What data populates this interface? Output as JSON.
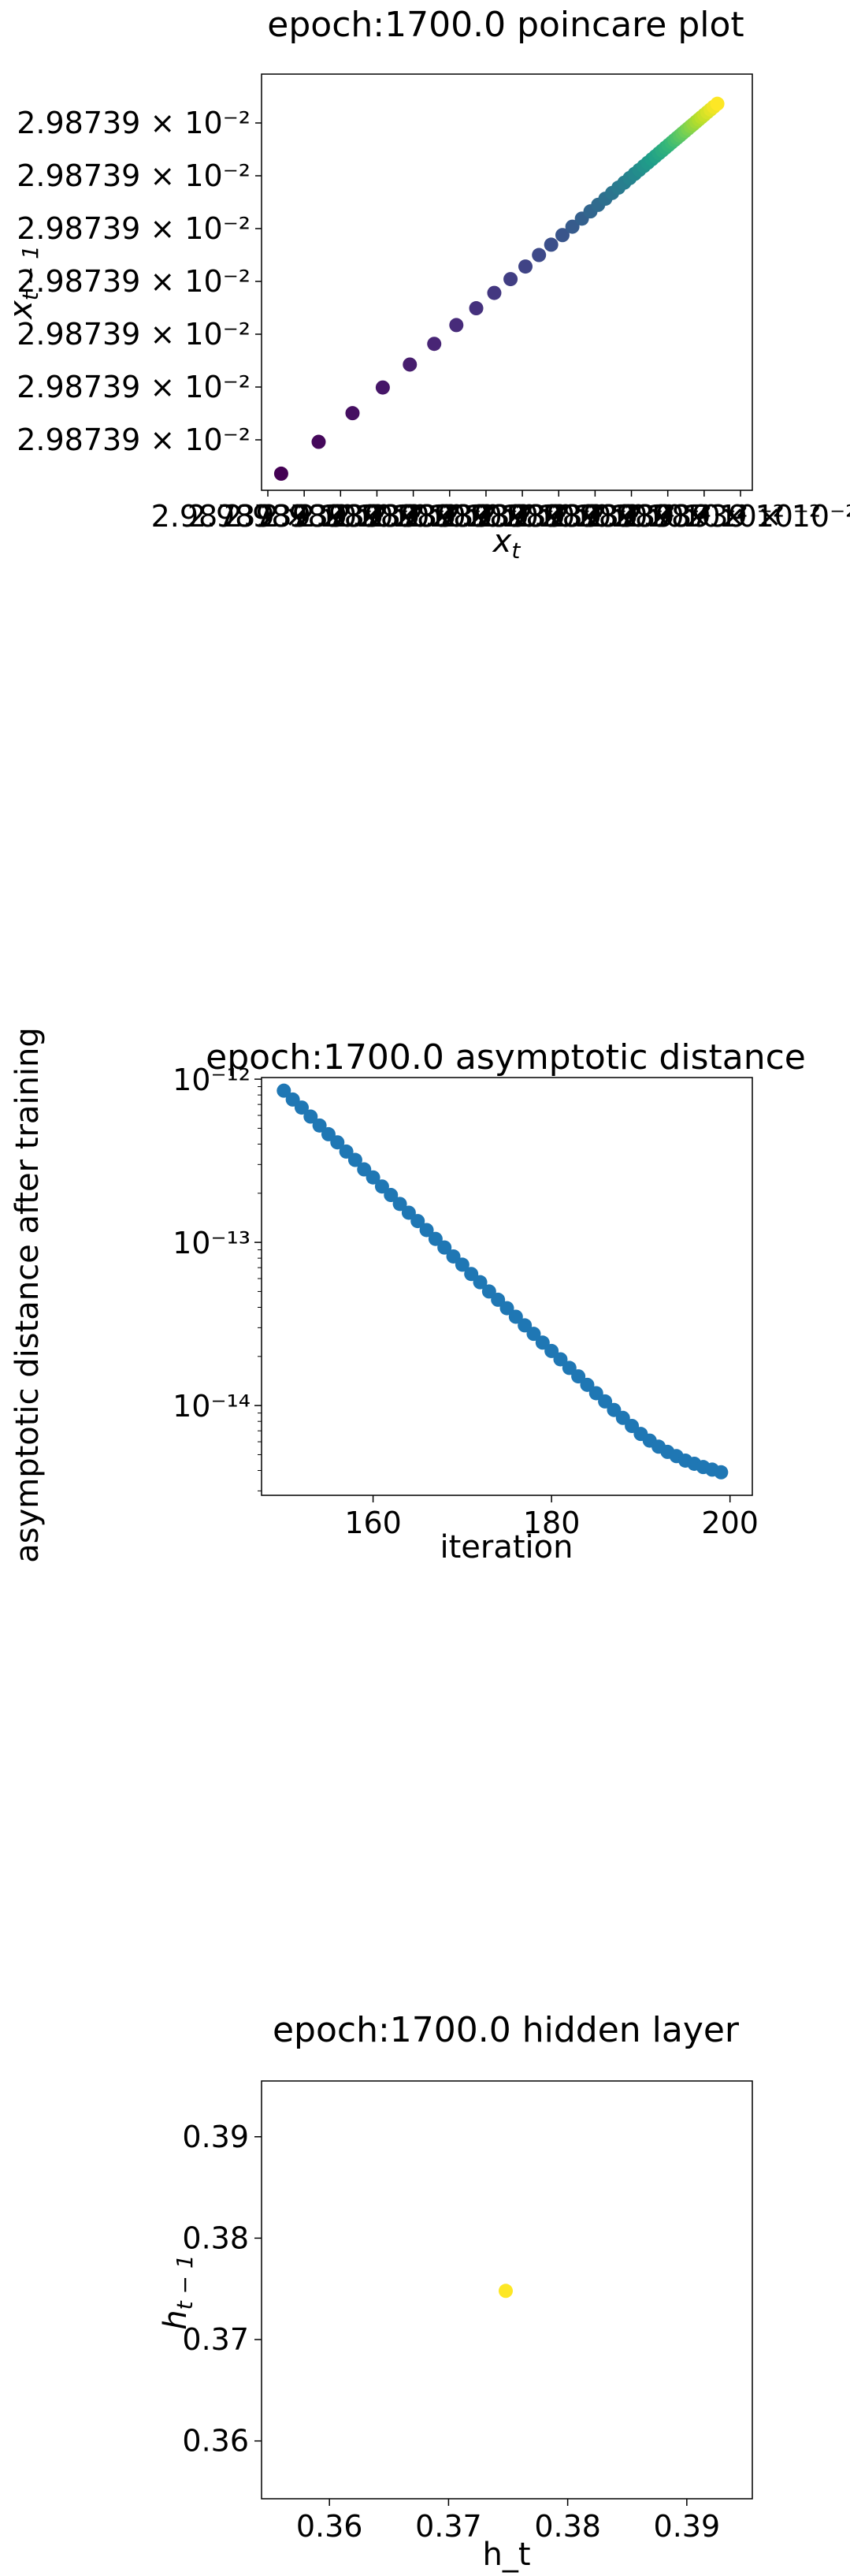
{
  "chart_data": [
    {
      "type": "scatter",
      "title": "epoch:1700.0 poincare plot",
      "xlabel": "x_t",
      "ylabel": "x_{t-1}",
      "x_tick_labels": [
        "2.98739 × 10⁻²",
        "2.98739 × 10⁻²",
        "2.98739 × 10⁻²",
        "2.98739 × 10⁻²",
        "2.98739 × 10⁻²",
        "2.98739 × 10⁻²",
        "2.98739 × 10⁻²",
        "2.98739 × 10⁻²",
        "2.98739 × 10⁻²",
        "2.98739 × 10⁻²",
        "2.98739 × 10⁻²",
        "2.98739 × 10⁻²",
        "2.98739 × 10⁻²",
        "2.98739 × 10⁻²"
      ],
      "y_tick_labels": [
        "2.98739 × 10⁻²",
        "2.98739 × 10⁻²",
        "2.98739 × 10⁻²",
        "2.98739 × 10⁻²",
        "2.98739 × 10⁻²",
        "2.98739 × 10⁻²",
        "2.98739 × 10⁻²"
      ],
      "value_approx": 0.0298739,
      "note_points": "points lie on diagonal; values identical to displayed precision",
      "points": [
        {
          "x": 0.0,
          "y": 0.0
        },
        {
          "x": 0.083,
          "y": 0.083
        },
        {
          "x": 0.158,
          "y": 0.158
        },
        {
          "x": 0.225,
          "y": 0.225
        },
        {
          "x": 0.285,
          "y": 0.285
        },
        {
          "x": 0.339,
          "y": 0.339
        },
        {
          "x": 0.388,
          "y": 0.388
        },
        {
          "x": 0.432,
          "y": 0.432
        },
        {
          "x": 0.472,
          "y": 0.472
        },
        {
          "x": 0.508,
          "y": 0.508
        },
        {
          "x": 0.541,
          "y": 0.541
        },
        {
          "x": 0.571,
          "y": 0.571
        },
        {
          "x": 0.598,
          "y": 0.598
        },
        {
          "x": 0.623,
          "y": 0.623
        },
        {
          "x": 0.645,
          "y": 0.645
        },
        {
          "x": 0.666,
          "y": 0.666
        },
        {
          "x": 0.685,
          "y": 0.685
        },
        {
          "x": 0.702,
          "y": 0.702
        },
        {
          "x": 0.718,
          "y": 0.718
        },
        {
          "x": 0.733,
          "y": 0.733
        },
        {
          "x": 0.747,
          "y": 0.747
        },
        {
          "x": 0.76,
          "y": 0.76
        },
        {
          "x": 0.772,
          "y": 0.772
        },
        {
          "x": 0.783,
          "y": 0.783
        },
        {
          "x": 0.793,
          "y": 0.793
        },
        {
          "x": 0.803,
          "y": 0.803
        },
        {
          "x": 0.812,
          "y": 0.812
        },
        {
          "x": 0.821,
          "y": 0.821
        },
        {
          "x": 0.829,
          "y": 0.829
        },
        {
          "x": 0.837,
          "y": 0.837
        },
        {
          "x": 0.844,
          "y": 0.844
        },
        {
          "x": 0.851,
          "y": 0.851
        },
        {
          "x": 0.858,
          "y": 0.858
        },
        {
          "x": 0.865,
          "y": 0.865
        },
        {
          "x": 0.871,
          "y": 0.871
        },
        {
          "x": 0.877,
          "y": 0.877
        },
        {
          "x": 0.883,
          "y": 0.883
        },
        {
          "x": 0.889,
          "y": 0.889
        },
        {
          "x": 0.895,
          "y": 0.895
        },
        {
          "x": 0.901,
          "y": 0.901
        },
        {
          "x": 0.907,
          "y": 0.907
        },
        {
          "x": 0.913,
          "y": 0.913
        },
        {
          "x": 0.919,
          "y": 0.919
        },
        {
          "x": 0.925,
          "y": 0.925
        },
        {
          "x": 0.931,
          "y": 0.931
        },
        {
          "x": 0.937,
          "y": 0.937
        },
        {
          "x": 0.944,
          "y": 0.944
        },
        {
          "x": 0.951,
          "y": 0.951
        },
        {
          "x": 0.958,
          "y": 0.958
        },
        {
          "x": 0.966,
          "y": 0.966
        }
      ],
      "colormap": "viridis",
      "grid": false
    },
    {
      "type": "scatter",
      "title": "epoch:1700.0 asymptotic distance",
      "xlabel": "iteration",
      "ylabel": "asymptotic distance after training",
      "x_ticks": [
        160,
        180,
        200
      ],
      "x_tick_labels": [
        "160",
        "180",
        "200"
      ],
      "xlim": [
        147.5,
        202.5
      ],
      "yscale": "log",
      "y_tick_labels": [
        "10⁻¹²",
        "10⁻¹³",
        "10⁻¹⁴"
      ],
      "y_tick_exponents": [
        -12,
        -13,
        -14
      ],
      "ylim_log10": [
        -14.55,
        -11.99
      ],
      "x": [
        150,
        151,
        152,
        153,
        154,
        155,
        156,
        157,
        158,
        159,
        160,
        161,
        162,
        163,
        164,
        165,
        166,
        167,
        168,
        169,
        170,
        171,
        172,
        173,
        174,
        175,
        176,
        177,
        178,
        179,
        180,
        181,
        182,
        183,
        184,
        185,
        186,
        187,
        188,
        189,
        190,
        191,
        192,
        193,
        194,
        195,
        196,
        197,
        198,
        199
      ],
      "y": [
        8.5e-13,
        7.5e-13,
        6.7e-13,
        5.9e-13,
        5.2e-13,
        4.6e-13,
        4.1e-13,
        3.6e-13,
        3.2e-13,
        2.8e-13,
        2.5e-13,
        2.2e-13,
        1.95e-13,
        1.72e-13,
        1.52e-13,
        1.35e-13,
        1.19e-13,
        1.05e-13,
        9.3e-14,
        8.2e-14,
        7.3e-14,
        6.4e-14,
        5.7e-14,
        5e-14,
        4.45e-14,
        3.95e-14,
        3.5e-14,
        3.1e-14,
        2.75e-14,
        2.43e-14,
        2.16e-14,
        1.92e-14,
        1.7e-14,
        1.51e-14,
        1.34e-14,
        1.19e-14,
        1.06e-14,
        9.4e-15,
        8.4e-15,
        7.5e-15,
        6.7e-15,
        6.1e-15,
        5.6e-15,
        5.2e-15,
        4.9e-15,
        4.6e-15,
        4.4e-15,
        4.2e-15,
        4.05e-15,
        3.9e-15
      ],
      "color": "#1f77b4",
      "grid": false
    },
    {
      "type": "scatter",
      "title": "epoch:1700.0 hidden layer",
      "xlabel": "h_t",
      "ylabel": "h_{t-1}",
      "x_ticks": [
        0.36,
        0.37,
        0.38,
        0.39
      ],
      "x_tick_labels": [
        "0.36",
        "0.37",
        "0.38",
        "0.39"
      ],
      "y_ticks": [
        0.36,
        0.37,
        0.38,
        0.39
      ],
      "y_tick_labels": [
        "0.36",
        "0.37",
        "0.38",
        "0.39"
      ],
      "xlim": [
        0.3543,
        0.3955
      ],
      "ylim": [
        0.3543,
        0.3955
      ],
      "points": [
        {
          "x": 0.3748,
          "y": 0.3748
        }
      ],
      "color": "#fde725",
      "grid": false
    }
  ]
}
